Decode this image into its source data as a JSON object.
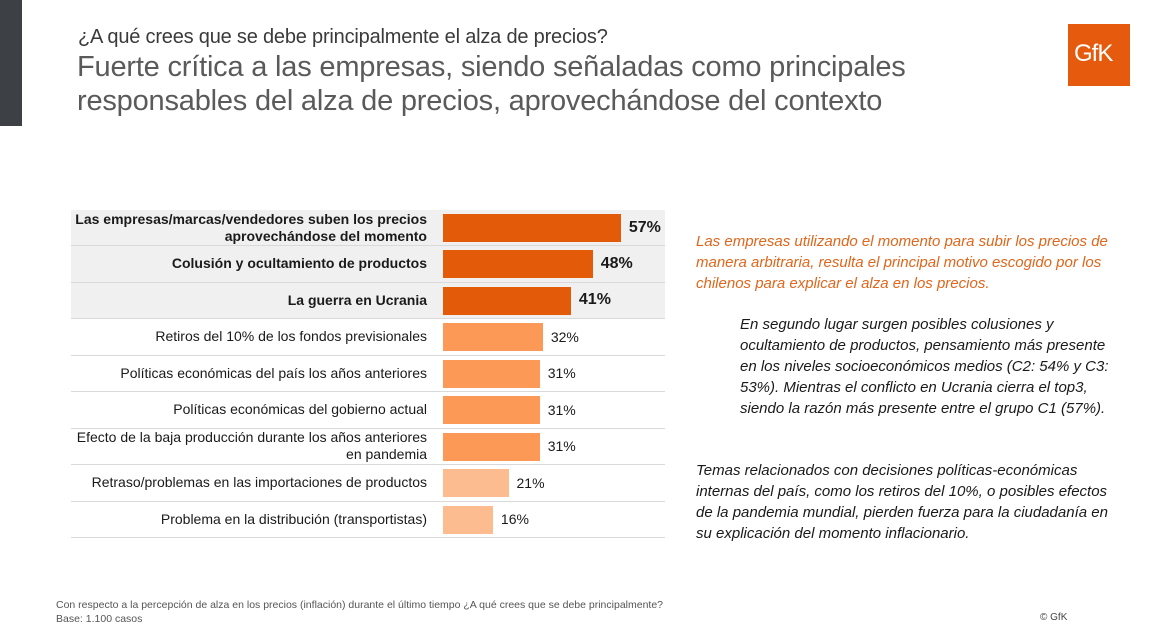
{
  "header": {
    "question": "¿A qué crees que se debe principalmente el alza de precios?",
    "headline": "Fuerte crítica a las empresas, siendo señaladas como principales responsables del alza de precios, aprovechándose del contexto"
  },
  "logo": {
    "text": "GfK",
    "color": "#e55a0c"
  },
  "colors": {
    "top": "#e35a09",
    "mid": "#fc9956",
    "low": "#fdbb90",
    "row_highlight": "#f0f0f0"
  },
  "chart_data": {
    "type": "bar",
    "orientation": "horizontal",
    "title": "¿A qué crees que se debe principalmente el alza de precios?",
    "xlabel": "",
    "ylabel": "",
    "xlim": [
      0,
      100
    ],
    "grid": false,
    "legend": "none",
    "categories": [
      "Las empresas/marcas/vendedores suben los precios aprovechándose del momento",
      "Colusión y ocultamiento de productos",
      "La guerra en Ucrania",
      "Retiros del 10% de los fondos previsionales",
      "Políticas económicas del país los años anteriores",
      "Políticas económicas del gobierno actual",
      "Efecto de la baja producción durante los años anteriores en pandemia",
      "Retraso/problemas en las importaciones de productos",
      "Problema en la distribución (transportistas)"
    ],
    "values": [
      57,
      48,
      41,
      32,
      31,
      31,
      31,
      21,
      16
    ],
    "value_labels": [
      "57%",
      "48%",
      "41%",
      "32%",
      "31%",
      "31%",
      "31%",
      "21%",
      "16%"
    ],
    "tiers": [
      "top",
      "top",
      "top",
      "mid",
      "mid",
      "mid",
      "mid",
      "low",
      "low"
    ],
    "unit": "%"
  },
  "text_panel": {
    "callout": "Las empresas utilizando el momento para subir los precios de manera arbitraria, resulta el principal motivo escogido por los chilenos para explicar el alza en los precios.",
    "paragraph2": "En segundo lugar surgen posibles colusiones y ocultamiento de productos, pensamiento más presente en los niveles socioeconómicos medios (C2: 54% y C3: 53%). Mientras el conflicto en Ucrania cierra el top3, siendo la razón más presente entre el grupo C1 (57%).",
    "paragraph3": "Temas relacionados con decisiones políticas-económicas internas del país, como los retiros del 10%, o posibles efectos de la pandemia mundial, pierden fuerza para la ciudadanía en su explicación del momento inflacionario."
  },
  "footer": {
    "note": "Con respecto a la percepción de alza en los precios (inflación) durante el último tiempo ¿A qué crees que se debe principalmente?",
    "base": "Base: 1.100 casos",
    "copyright": "© GfK"
  }
}
